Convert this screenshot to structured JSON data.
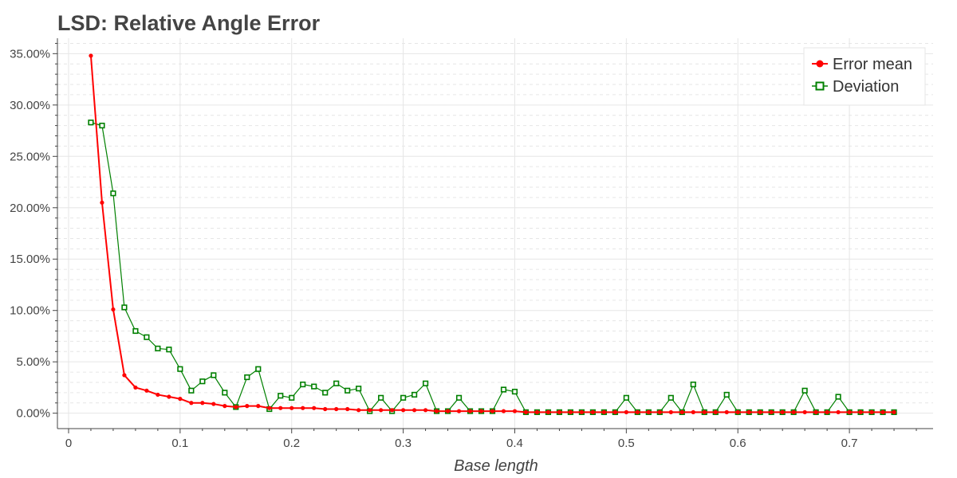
{
  "chart_data": {
    "type": "line",
    "title": "LSD: Relative Angle Error",
    "xlabel": "Base length",
    "ylabel": "",
    "xlim": [
      -0.01,
      0.775
    ],
    "ylim": [
      -0.015,
      0.365
    ],
    "x_ticks": [
      0,
      0.1,
      0.2,
      0.3,
      0.4,
      0.5,
      0.6,
      0.7
    ],
    "x_tick_labels": [
      "0",
      "0.1",
      "0.2",
      "0.3",
      "0.4",
      "0.5",
      "0.6",
      "0.7"
    ],
    "y_ticks": [
      0,
      0.05,
      0.1,
      0.15,
      0.2,
      0.25,
      0.3,
      0.35
    ],
    "y_tick_labels": [
      "0.00%",
      "5.00%",
      "10.00%",
      "15.00%",
      "20.00%",
      "25.00%",
      "30.00%",
      "35.00%"
    ],
    "grid": true,
    "legend_position": "top-right",
    "x": [
      0.02,
      0.03,
      0.04,
      0.05,
      0.06,
      0.07,
      0.08,
      0.09,
      0.1,
      0.11,
      0.12,
      0.13,
      0.14,
      0.15,
      0.16,
      0.17,
      0.18,
      0.19,
      0.2,
      0.21,
      0.22,
      0.23,
      0.24,
      0.25,
      0.26,
      0.27,
      0.28,
      0.29,
      0.3,
      0.31,
      0.32,
      0.33,
      0.34,
      0.35,
      0.36,
      0.37,
      0.38,
      0.39,
      0.4,
      0.41,
      0.42,
      0.43,
      0.44,
      0.45,
      0.46,
      0.47,
      0.48,
      0.49,
      0.5,
      0.51,
      0.52,
      0.53,
      0.54,
      0.55,
      0.56,
      0.57,
      0.58,
      0.59,
      0.6,
      0.61,
      0.62,
      0.63,
      0.64,
      0.65,
      0.66,
      0.67,
      0.68,
      0.69,
      0.7,
      0.71,
      0.72,
      0.73,
      0.74
    ],
    "series": [
      {
        "name": "Error mean",
        "color": "#ff0000",
        "marker": "circle",
        "values": [
          0.348,
          0.205,
          0.101,
          0.037,
          0.025,
          0.022,
          0.018,
          0.016,
          0.014,
          0.01,
          0.01,
          0.009,
          0.007,
          0.006,
          0.007,
          0.007,
          0.005,
          0.005,
          0.005,
          0.005,
          0.005,
          0.004,
          0.004,
          0.004,
          0.003,
          0.003,
          0.003,
          0.003,
          0.003,
          0.003,
          0.003,
          0.002,
          0.002,
          0.002,
          0.002,
          0.002,
          0.002,
          0.002,
          0.002,
          0.001,
          0.001,
          0.001,
          0.001,
          0.001,
          0.001,
          0.001,
          0.001,
          0.001,
          0.001,
          0.001,
          0.001,
          0.001,
          0.001,
          0.001,
          0.001,
          0.001,
          0.001,
          0.001,
          0.001,
          0.001,
          0.001,
          0.001,
          0.001,
          0.001,
          0.001,
          0.001,
          0.001,
          0.001,
          0.001,
          0.001,
          0.001,
          0.001,
          0.001
        ]
      },
      {
        "name": "Deviation",
        "color": "#008000",
        "marker": "square",
        "values": [
          0.283,
          0.28,
          0.214,
          0.103,
          0.08,
          0.074,
          0.063,
          0.062,
          0.043,
          0.022,
          0.031,
          0.037,
          0.02,
          0.006,
          0.035,
          0.043,
          0.004,
          0.017,
          0.015,
          0.028,
          0.026,
          0.02,
          0.029,
          0.022,
          0.024,
          0.002,
          0.015,
          0.002,
          0.015,
          0.018,
          0.029,
          0.002,
          0.002,
          0.015,
          0.002,
          0.002,
          0.002,
          0.023,
          0.021,
          0.001,
          0.001,
          0.001,
          0.001,
          0.001,
          0.001,
          0.001,
          0.001,
          0.001,
          0.015,
          0.001,
          0.001,
          0.001,
          0.015,
          0.001,
          0.028,
          0.001,
          0.001,
          0.018,
          0.001,
          0.001,
          0.001,
          0.001,
          0.001,
          0.001,
          0.022,
          0.001,
          0.001,
          0.016,
          0.001,
          0.001,
          0.001,
          0.001,
          0.001
        ]
      }
    ]
  }
}
